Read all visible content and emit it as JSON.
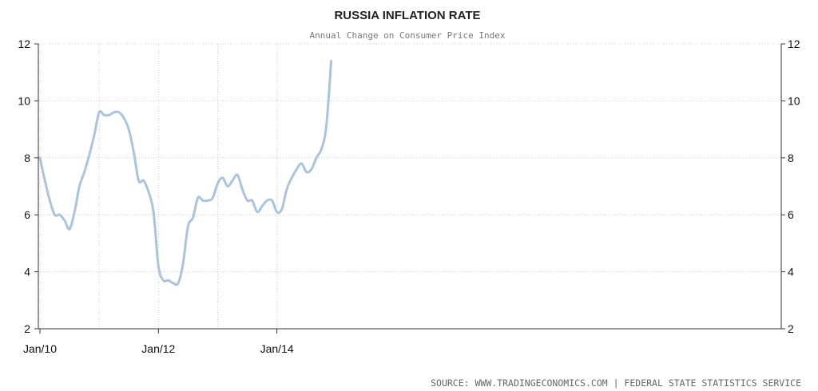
{
  "chart_data": {
    "type": "line",
    "title": "RUSSIA INFLATION RATE",
    "subtitle": "Annual Change on Consumer Price Index",
    "xlabel": "",
    "ylabel": "",
    "ylim": [
      2,
      12
    ],
    "yticks": [
      2,
      4,
      6,
      8,
      10,
      12
    ],
    "xticks": [
      "Jan/10",
      "Jan/12",
      "Jan/14"
    ],
    "grid": true,
    "source": "SOURCE:  WWW.TRADINGECONOMICS.COM  |  FEDERAL STATE STATISTICS SERVICE",
    "colors": {
      "line": "#a9c4dc",
      "axis": "#333333",
      "grid": "#cfcfcf"
    },
    "series": [
      {
        "x": [
          "2010-01",
          "2010-02",
          "2010-03",
          "2010-04",
          "2010-05",
          "2010-06",
          "2010-07",
          "2010-08",
          "2010-09",
          "2010-10",
          "2010-11",
          "2010-12",
          "2011-01",
          "2011-02",
          "2011-03",
          "2011-04",
          "2011-05",
          "2011-06",
          "2011-07",
          "2011-08",
          "2011-09",
          "2011-10",
          "2011-11",
          "2011-12",
          "2012-01",
          "2012-02",
          "2012-03",
          "2012-04",
          "2012-05",
          "2012-06",
          "2012-07",
          "2012-08",
          "2012-09",
          "2012-10",
          "2012-11",
          "2012-12",
          "2013-01",
          "2013-02",
          "2013-03",
          "2013-04",
          "2013-05",
          "2013-06",
          "2013-07",
          "2013-08",
          "2013-09",
          "2013-10",
          "2013-11",
          "2013-12",
          "2014-01",
          "2014-02",
          "2014-03",
          "2014-04",
          "2014-05",
          "2014-06",
          "2014-07",
          "2014-08",
          "2014-09",
          "2014-10",
          "2014-11",
          "2014-12"
        ],
        "values": [
          8.0,
          7.2,
          6.5,
          6.0,
          6.0,
          5.8,
          5.5,
          6.1,
          7.0,
          7.5,
          8.1,
          8.8,
          9.6,
          9.5,
          9.5,
          9.6,
          9.6,
          9.4,
          9.0,
          8.2,
          7.2,
          7.2,
          6.8,
          6.1,
          4.2,
          3.7,
          3.7,
          3.6,
          3.6,
          4.3,
          5.6,
          5.9,
          6.6,
          6.5,
          6.5,
          6.6,
          7.1,
          7.3,
          7.0,
          7.2,
          7.4,
          6.9,
          6.5,
          6.5,
          6.1,
          6.3,
          6.5,
          6.5,
          6.1,
          6.2,
          6.9,
          7.3,
          7.6,
          7.8,
          7.5,
          7.6,
          8.0,
          8.3,
          9.1,
          11.4
        ]
      }
    ]
  }
}
